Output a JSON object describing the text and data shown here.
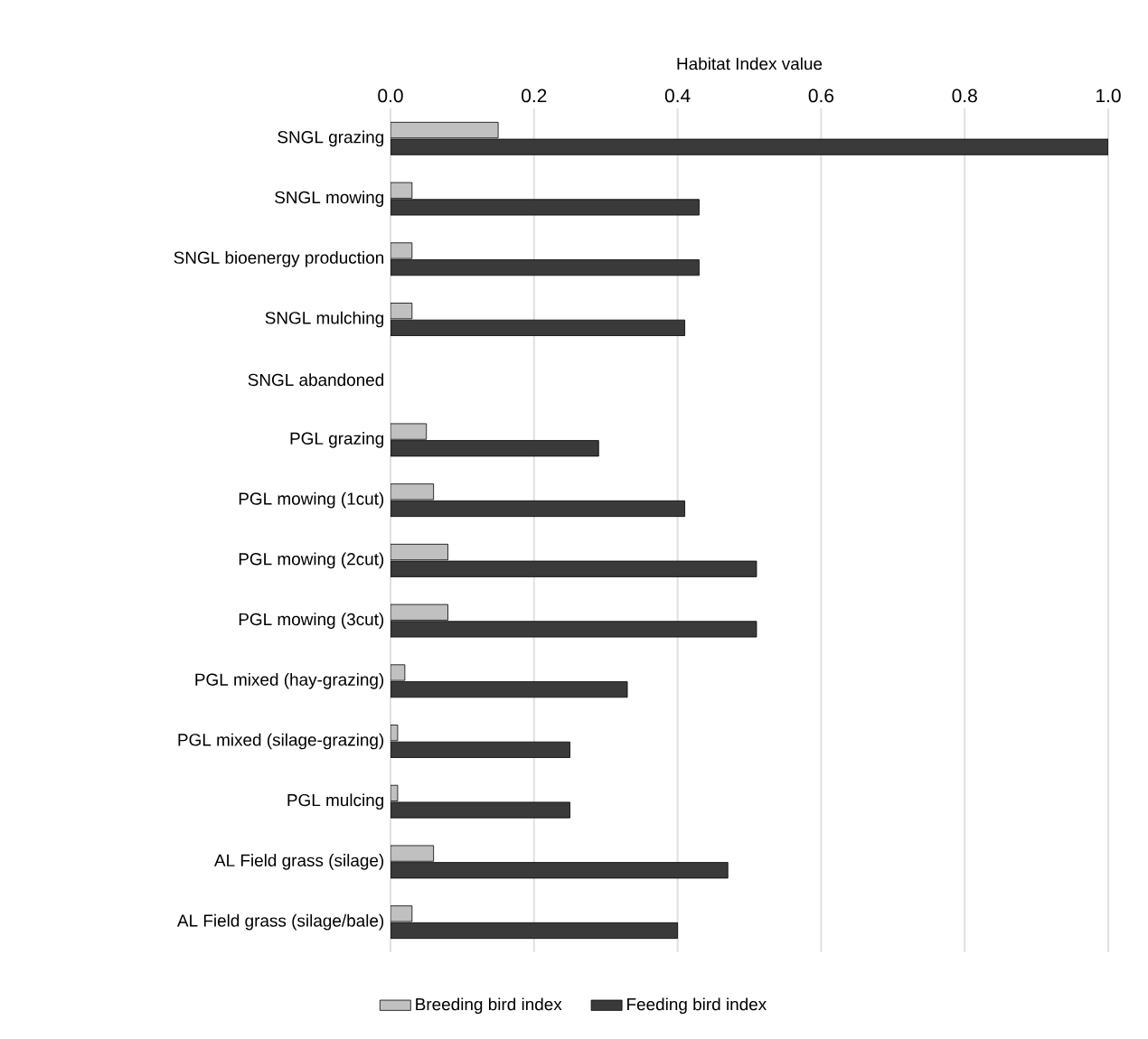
{
  "chart_data": {
    "type": "bar",
    "orientation": "horizontal",
    "xlabel": "Habitat Index value",
    "categories": [
      "SNGL grazing",
      "SNGL mowing",
      "SNGL bioenergy production",
      "SNGL mulching",
      "SNGL abandoned",
      "PGL grazing",
      "PGL mowing (1cut)",
      "PGL mowing (2cut)",
      "PGL mowing (3cut)",
      "PGL mixed (hay-grazing)",
      "PGL mixed (silage-grazing)",
      "PGL mulcing",
      "AL Field grass (silage)",
      "AL Field grass (silage/bale)"
    ],
    "series": [
      {
        "name": "Breeding bird index",
        "color": "#c0c0c0",
        "values": [
          0.15,
          0.03,
          0.03,
          0.03,
          null,
          0.05,
          0.06,
          0.08,
          0.08,
          0.02,
          0.01,
          0.01,
          0.06,
          0.03
        ]
      },
      {
        "name": "Feeding bird index",
        "color": "#3a3a3a",
        "values": [
          1.0,
          0.43,
          0.43,
          0.41,
          null,
          0.29,
          0.41,
          0.51,
          0.51,
          0.33,
          0.25,
          0.25,
          0.47,
          0.4
        ]
      }
    ],
    "xlim": [
      0,
      1
    ],
    "xticks": [
      {
        "value": 0,
        "label": "0.0"
      },
      {
        "value": 0.2,
        "label": "0.2"
      },
      {
        "value": 0.4,
        "label": "0.4"
      },
      {
        "value": 0.6,
        "label": "0.6"
      },
      {
        "value": 0.8,
        "label": "0.8"
      },
      {
        "value": 1,
        "label": "1.0"
      }
    ],
    "grid": "x",
    "legend": "bottom"
  }
}
